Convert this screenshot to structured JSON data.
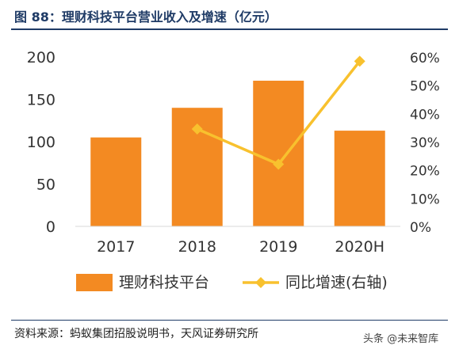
{
  "title": "图 88：理财科技平台营业收入及增速（亿元）",
  "source": "资料来源：蚂蚁集团招股说明书，天风证券研究所",
  "watermark": "头条 @未来智库",
  "colors": {
    "bar": "#f38a22",
    "line": "#f8c12e",
    "title": "#1f3b66",
    "text": "#333333"
  },
  "chart_data": {
    "type": "bar",
    "categories": [
      "2017",
      "2018",
      "2019",
      "2020H"
    ],
    "series": [
      {
        "name": "理财科技平台",
        "type": "bar",
        "axis": "left",
        "values": [
          105,
          140,
          172,
          113
        ]
      },
      {
        "name": "同比增速(右轴)",
        "type": "line",
        "axis": "right",
        "values": [
          null,
          34.5,
          22,
          58.5
        ]
      }
    ],
    "y_left": {
      "ylim": [
        0,
        200
      ],
      "ticks": [
        {
          "value": 0,
          "label": "0"
        },
        {
          "value": 50,
          "label": "50"
        },
        {
          "value": 100,
          "label": "100"
        },
        {
          "value": 150,
          "label": "150"
        },
        {
          "value": 200,
          "label": "200"
        }
      ]
    },
    "y_right": {
      "ylim": [
        0,
        60
      ],
      "ticks": [
        {
          "value": 0,
          "label": "0%"
        },
        {
          "value": 10,
          "label": "10%"
        },
        {
          "value": 20,
          "label": "20%"
        },
        {
          "value": 30,
          "label": "30%"
        },
        {
          "value": 40,
          "label": "40%"
        },
        {
          "value": 50,
          "label": "50%"
        },
        {
          "value": 60,
          "label": "60%"
        }
      ]
    },
    "grid": false,
    "legend": "bottom"
  }
}
